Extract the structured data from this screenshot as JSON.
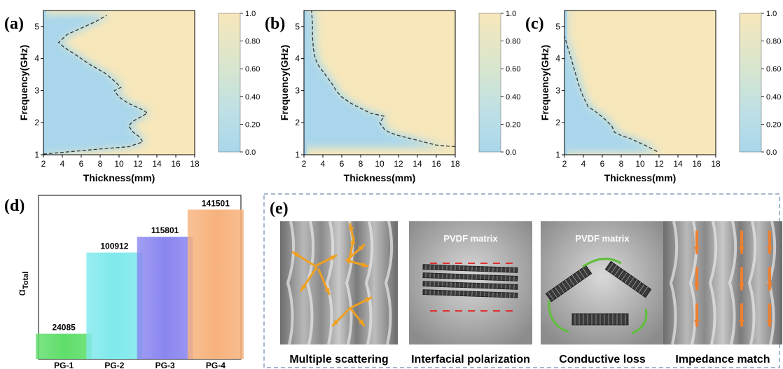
{
  "colors": {
    "low": "#a9d6ec",
    "high": "#f7e7bb",
    "bar_pg1": "#5fde6a",
    "bar_pg2": "#7fe9ec",
    "bar_pg3": "#8a86f0",
    "bar_pg4": "#f7b27c",
    "arrow": "#f0a020",
    "arrow_orange": "#ee8030",
    "loss_arrow": "#5fbf3a",
    "polar_dash": "#e03030"
  },
  "panel_labels": [
    "(a)",
    "(b)",
    "(c)",
    "(d)",
    "(e)"
  ],
  "chart_data": [
    {
      "type": "heatmap",
      "panel": "(a)",
      "xlabel": "Thickness(mm)",
      "ylabel": "Frequency(GHz)",
      "xlim": [
        2,
        18
      ],
      "ylim": [
        1,
        5.5
      ],
      "xticks": [
        "2",
        "4",
        "6",
        "8",
        "10",
        "12",
        "14",
        "16",
        "18"
      ],
      "yticks": [
        "1",
        "2",
        "3",
        "4",
        "5"
      ],
      "colorbar_ticks": [
        "0.0",
        "0.20",
        "0.40",
        "0.60",
        "0.80",
        "1.0"
      ],
      "contour_line": {
        "thickness": [
          2.0,
          5,
          8,
          11,
          12.5,
          12.2,
          11.5,
          11.0,
          11.5,
          13.0,
          12.5,
          11.0,
          10.0,
          9.5,
          10.2,
          9.5,
          8.5,
          7.0,
          5.5,
          4.2,
          3.6,
          4.5,
          6.0,
          7.5,
          8.7
        ],
        "frequency": [
          1.02,
          1.1,
          1.18,
          1.25,
          1.4,
          1.55,
          1.7,
          1.9,
          2.05,
          2.3,
          2.4,
          2.6,
          2.8,
          3.0,
          3.1,
          3.3,
          3.55,
          3.8,
          4.1,
          4.35,
          4.5,
          4.75,
          4.95,
          5.15,
          5.35
        ]
      }
    },
    {
      "type": "heatmap",
      "panel": "(b)",
      "xlabel": "Thickness(mm)",
      "ylabel": "Frequency(GHz)",
      "xlim": [
        2,
        18
      ],
      "ylim": [
        1,
        5.5
      ],
      "xticks": [
        "2",
        "4",
        "6",
        "8",
        "10",
        "12",
        "14",
        "16",
        "18"
      ],
      "yticks": [
        "1",
        "2",
        "3",
        "4",
        "5"
      ],
      "colorbar_ticks": [
        "0.0",
        "0.20",
        "0.40",
        "0.60",
        "0.80",
        "1.0"
      ],
      "contour_line": {
        "thickness": [
          18,
          16,
          14,
          12,
          11,
          10.5,
          10.0,
          10.5,
          9.0,
          8.0,
          7.0,
          6.0,
          5.4,
          5.0,
          4.5,
          4.0,
          3.5,
          3.2,
          3.0,
          2.9,
          2.9,
          2.8
        ],
        "frequency": [
          1.25,
          1.3,
          1.45,
          1.6,
          1.7,
          1.8,
          2.0,
          2.2,
          2.3,
          2.45,
          2.6,
          2.8,
          3.0,
          3.2,
          3.4,
          3.6,
          3.8,
          4.0,
          4.3,
          4.7,
          5.1,
          5.5
        ]
      }
    },
    {
      "type": "heatmap",
      "panel": "(c)",
      "xlabel": "Thickness(mm)",
      "ylabel": "Frequency(GHz)",
      "xlim": [
        2,
        18
      ],
      "ylim": [
        1,
        5.5
      ],
      "xticks": [
        "2",
        "4",
        "6",
        "8",
        "10",
        "12",
        "14",
        "16",
        "18"
      ],
      "yticks": [
        "1",
        "2",
        "3",
        "4",
        "5"
      ],
      "colorbar_ticks": [
        "0.0",
        "0.20",
        "0.40",
        "0.60",
        "0.80",
        "1.0"
      ],
      "contour_line": {
        "thickness": [
          11.8,
          10.5,
          9.0,
          8.0,
          7.3,
          7.0,
          6.3,
          5.5,
          4.5,
          4.0,
          3.6,
          3.2,
          2.8,
          2.4,
          2.0
        ],
        "frequency": [
          1.1,
          1.3,
          1.5,
          1.6,
          1.7,
          1.9,
          2.1,
          2.3,
          2.5,
          2.8,
          3.1,
          3.5,
          3.9,
          4.3,
          4.7
        ]
      }
    },
    {
      "type": "bar",
      "panel": "(d)",
      "ylabel_main": "α",
      "ylabel_sub": "Total",
      "categories": [
        "PG-1",
        "PG-2",
        "PG-3",
        "PG-4"
      ],
      "values": [
        24085,
        100912,
        115801,
        141501
      ],
      "value_labels": [
        "24085",
        "100912",
        "115801",
        "141501"
      ],
      "ylim": [
        0,
        155000
      ]
    }
  ],
  "mechanisms": {
    "title": "(e)",
    "items": [
      {
        "caption": "Multiple scattering",
        "tag": ""
      },
      {
        "caption": "Interfacial polarization",
        "tag": "PVDF matrix"
      },
      {
        "caption": "Conductive loss",
        "tag": "PVDF matrix"
      },
      {
        "caption": "Impedance match",
        "tag": ""
      }
    ]
  }
}
